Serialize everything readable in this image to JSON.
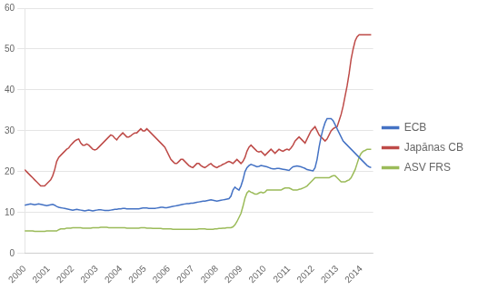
{
  "chart_data": {
    "type": "line",
    "x": [
      2000.0,
      2000.083,
      2000.167,
      2000.25,
      2000.333,
      2000.417,
      2000.5,
      2000.583,
      2000.667,
      2000.75,
      2000.833,
      2000.917,
      2001.0,
      2001.083,
      2001.167,
      2001.25,
      2001.333,
      2001.417,
      2001.5,
      2001.583,
      2001.667,
      2001.75,
      2001.833,
      2001.917,
      2002.0,
      2002.083,
      2002.167,
      2002.25,
      2002.333,
      2002.417,
      2002.5,
      2002.583,
      2002.667,
      2002.75,
      2002.833,
      2002.917,
      2003.0,
      2003.083,
      2003.167,
      2003.25,
      2003.333,
      2003.417,
      2003.5,
      2003.583,
      2003.667,
      2003.75,
      2003.833,
      2003.917,
      2004.0,
      2004.083,
      2004.167,
      2004.25,
      2004.333,
      2004.417,
      2004.5,
      2004.583,
      2004.667,
      2004.75,
      2004.833,
      2004.917,
      2005.0,
      2005.083,
      2005.167,
      2005.25,
      2005.333,
      2005.417,
      2005.5,
      2005.583,
      2005.667,
      2005.75,
      2005.833,
      2005.917,
      2006.0,
      2006.083,
      2006.167,
      2006.25,
      2006.333,
      2006.417,
      2006.5,
      2006.583,
      2006.667,
      2006.75,
      2006.833,
      2006.917,
      2007.0,
      2007.083,
      2007.167,
      2007.25,
      2007.333,
      2007.417,
      2007.5,
      2007.583,
      2007.667,
      2007.75,
      2007.833,
      2007.917,
      2008.0,
      2008.083,
      2008.167,
      2008.25,
      2008.333,
      2008.417,
      2008.5,
      2008.583,
      2008.667,
      2008.75,
      2008.833,
      2008.917,
      2009.0,
      2009.083,
      2009.167,
      2009.25,
      2009.333,
      2009.417,
      2009.5,
      2009.583,
      2009.667,
      2009.75,
      2009.833,
      2009.917,
      2010.0,
      2010.083,
      2010.167,
      2010.25,
      2010.333,
      2010.417,
      2010.5,
      2010.583,
      2010.667,
      2010.75,
      2010.833,
      2010.917,
      2011.0,
      2011.083,
      2011.167,
      2011.25,
      2011.333,
      2011.417,
      2011.5,
      2011.583,
      2011.667,
      2011.75,
      2011.833,
      2011.917,
      2012.0,
      2012.083,
      2012.167,
      2012.25,
      2012.333,
      2012.417,
      2012.5,
      2012.583,
      2012.667,
      2012.75,
      2012.833,
      2012.917,
      2013.0,
      2013.083,
      2013.167,
      2013.25,
      2013.333,
      2013.417,
      2013.5,
      2013.583,
      2013.667,
      2013.75,
      2013.833,
      2013.917,
      2014.0,
      2014.083,
      2014.167,
      2014.25,
      2014.333,
      2014.417
    ],
    "series": [
      {
        "name": "ECB",
        "color": "#4472C4",
        "values": [
          11.8,
          11.9,
          12.0,
          12.1,
          12.0,
          11.9,
          12.0,
          12.1,
          12.0,
          11.9,
          11.8,
          11.7,
          11.8,
          11.9,
          12.0,
          11.8,
          11.5,
          11.3,
          11.2,
          11.1,
          11.0,
          10.9,
          10.8,
          10.7,
          10.6,
          10.7,
          10.8,
          10.7,
          10.6,
          10.5,
          10.4,
          10.5,
          10.6,
          10.5,
          10.4,
          10.5,
          10.6,
          10.7,
          10.7,
          10.6,
          10.5,
          10.5,
          10.5,
          10.6,
          10.7,
          10.8,
          10.8,
          10.9,
          10.9,
          11.0,
          11.0,
          10.9,
          10.9,
          10.9,
          10.9,
          10.9,
          10.9,
          10.9,
          11.0,
          11.1,
          11.1,
          11.1,
          11.0,
          11.0,
          11.0,
          11.0,
          11.1,
          11.2,
          11.3,
          11.3,
          11.2,
          11.2,
          11.3,
          11.4,
          11.5,
          11.6,
          11.7,
          11.8,
          11.9,
          12.0,
          12.1,
          12.2,
          12.2,
          12.3,
          12.3,
          12.4,
          12.5,
          12.6,
          12.7,
          12.8,
          12.8,
          12.9,
          13.0,
          13.1,
          13.0,
          12.9,
          12.8,
          12.9,
          13.0,
          13.1,
          13.2,
          13.3,
          13.4,
          14.0,
          15.5,
          16.2,
          15.8,
          15.5,
          16.5,
          18.0,
          20.0,
          21.0,
          21.5,
          21.8,
          21.6,
          21.4,
          21.2,
          21.3,
          21.5,
          21.4,
          21.3,
          21.2,
          21.0,
          20.8,
          20.7,
          20.7,
          20.8,
          20.8,
          20.7,
          20.6,
          20.5,
          20.4,
          20.3,
          20.8,
          21.2,
          21.3,
          21.4,
          21.3,
          21.2,
          21.0,
          20.8,
          20.5,
          20.4,
          20.3,
          20.2,
          21.0,
          23.0,
          26.0,
          28.5,
          30.5,
          32.0,
          33.0,
          33.0,
          33.0,
          32.5,
          31.5,
          30.5,
          29.5,
          28.5,
          27.5,
          27.0,
          26.5,
          26.0,
          25.5,
          25.0,
          24.5,
          24.0,
          23.5,
          23.0,
          22.5,
          22.0,
          21.5,
          21.2,
          21.0
        ]
      },
      {
        "name": "Japānas CB",
        "color": "#BE4B48",
        "values": [
          20.5,
          20.0,
          19.5,
          19.0,
          18.5,
          18.0,
          17.5,
          17.0,
          16.5,
          16.5,
          16.5,
          17.0,
          17.5,
          18.0,
          19.0,
          20.5,
          22.5,
          23.5,
          24.0,
          24.5,
          25.0,
          25.5,
          25.8,
          26.5,
          27.0,
          27.5,
          27.8,
          28.0,
          27.0,
          26.5,
          26.5,
          26.8,
          26.5,
          26.0,
          25.5,
          25.3,
          25.5,
          26.0,
          26.5,
          27.0,
          27.5,
          28.0,
          28.5,
          29.0,
          28.8,
          28.2,
          27.8,
          28.5,
          29.0,
          29.5,
          29.0,
          28.5,
          28.5,
          28.8,
          29.2,
          29.5,
          29.5,
          30.0,
          30.5,
          30.0,
          30.0,
          30.5,
          30.0,
          29.5,
          29.0,
          28.5,
          28.0,
          27.5,
          27.0,
          26.5,
          26.0,
          25.0,
          24.0,
          23.0,
          22.5,
          22.0,
          22.0,
          22.5,
          23.0,
          23.0,
          22.5,
          22.0,
          21.5,
          21.2,
          21.0,
          21.5,
          22.0,
          22.0,
          21.5,
          21.2,
          21.0,
          21.3,
          21.7,
          22.0,
          21.5,
          21.2,
          21.0,
          21.3,
          21.5,
          21.8,
          22.0,
          22.3,
          22.5,
          22.3,
          22.0,
          22.5,
          23.0,
          22.5,
          22.0,
          22.5,
          23.5,
          25.0,
          26.0,
          26.5,
          26.0,
          25.5,
          25.0,
          24.8,
          25.0,
          24.5,
          24.0,
          24.5,
          25.0,
          25.5,
          25.0,
          24.5,
          25.0,
          25.5,
          25.2,
          25.0,
          25.3,
          25.5,
          25.3,
          25.8,
          26.5,
          27.5,
          28.0,
          28.5,
          28.0,
          27.5,
          27.0,
          28.0,
          29.0,
          30.0,
          30.5,
          31.0,
          30.0,
          29.0,
          28.5,
          28.0,
          27.5,
          28.0,
          29.0,
          30.0,
          30.5,
          30.8,
          31.0,
          32.5,
          34.0,
          36.0,
          38.5,
          41.0,
          44.0,
          47.5,
          50.0,
          52.0,
          53.0,
          53.5,
          53.5,
          53.5,
          53.5,
          53.5,
          53.5,
          53.5
        ]
      },
      {
        "name": "ASV FRS",
        "color": "#9BBB59",
        "values": [
          5.5,
          5.5,
          5.5,
          5.5,
          5.5,
          5.4,
          5.4,
          5.4,
          5.4,
          5.4,
          5.4,
          5.5,
          5.5,
          5.5,
          5.5,
          5.5,
          5.5,
          5.8,
          6.0,
          6.0,
          6.0,
          6.2,
          6.2,
          6.2,
          6.3,
          6.3,
          6.3,
          6.3,
          6.3,
          6.2,
          6.2,
          6.2,
          6.2,
          6.2,
          6.3,
          6.3,
          6.3,
          6.3,
          6.4,
          6.4,
          6.4,
          6.4,
          6.3,
          6.3,
          6.3,
          6.3,
          6.3,
          6.3,
          6.3,
          6.3,
          6.3,
          6.2,
          6.2,
          6.2,
          6.2,
          6.2,
          6.2,
          6.2,
          6.3,
          6.3,
          6.3,
          6.2,
          6.2,
          6.2,
          6.1,
          6.1,
          6.1,
          6.1,
          6.1,
          6.0,
          6.0,
          6.0,
          6.0,
          6.0,
          5.9,
          5.9,
          5.9,
          5.9,
          5.9,
          5.9,
          5.9,
          5.9,
          5.9,
          5.9,
          5.9,
          5.9,
          5.9,
          6.0,
          6.0,
          6.0,
          6.0,
          5.9,
          5.9,
          5.9,
          5.9,
          6.0,
          6.0,
          6.1,
          6.1,
          6.2,
          6.2,
          6.3,
          6.3,
          6.3,
          6.5,
          7.0,
          7.8,
          8.8,
          9.8,
          11.5,
          13.5,
          14.8,
          15.3,
          15.0,
          14.8,
          14.5,
          14.5,
          14.8,
          15.0,
          14.8,
          15.0,
          15.5,
          15.5,
          15.5,
          15.5,
          15.5,
          15.5,
          15.5,
          15.5,
          15.8,
          16.0,
          16.0,
          16.0,
          15.8,
          15.5,
          15.5,
          15.5,
          15.7,
          15.8,
          16.0,
          16.2,
          16.5,
          17.0,
          17.5,
          18.0,
          18.5,
          18.5,
          18.5,
          18.5,
          18.5,
          18.5,
          18.5,
          18.5,
          18.8,
          19.0,
          19.0,
          18.5,
          18.0,
          17.5,
          17.5,
          17.5,
          17.8,
          18.0,
          18.5,
          19.5,
          20.5,
          22.0,
          23.5,
          24.5,
          25.0,
          25.2,
          25.5,
          25.5,
          25.5
        ]
      }
    ],
    "xlim": [
      2000,
      2014.5
    ],
    "xticks": [
      2000,
      2001,
      2002,
      2003,
      2004,
      2005,
      2006,
      2007,
      2008,
      2009,
      2010,
      2011,
      2012,
      2013,
      2014
    ],
    "ylim": [
      0,
      60
    ],
    "yticks": [
      0,
      10,
      20,
      30,
      40,
      50,
      60
    ],
    "grid": "y",
    "legend": "right"
  }
}
